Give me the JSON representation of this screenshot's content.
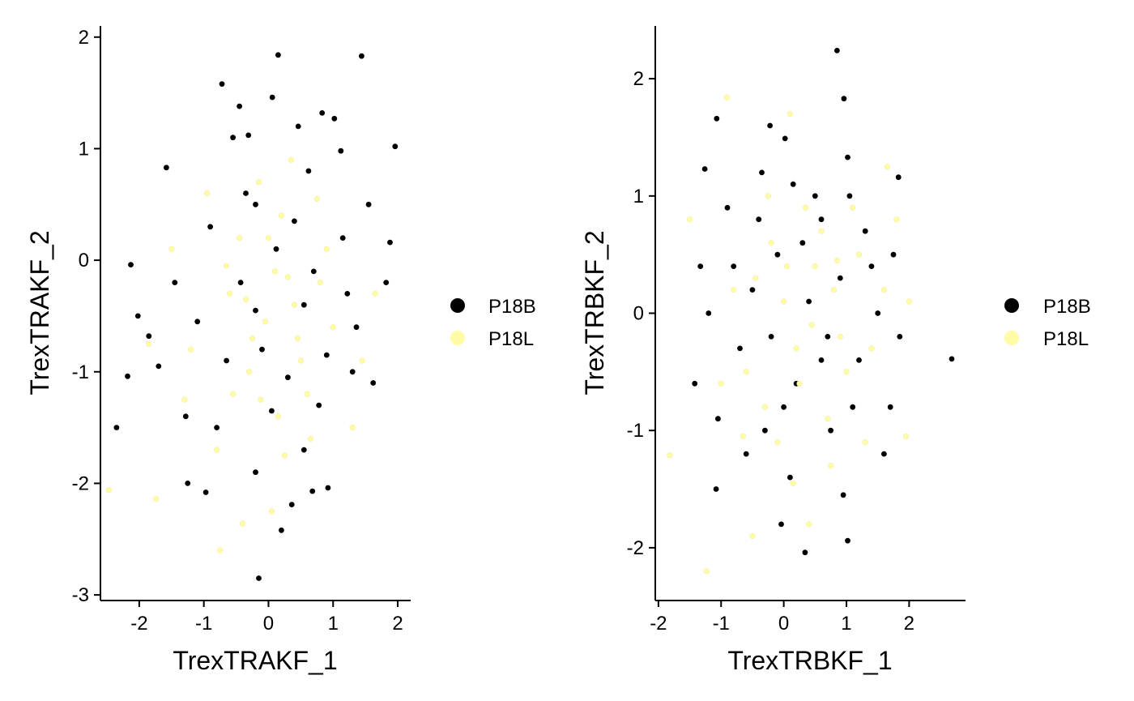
{
  "colors": {
    "P18B": "#000000",
    "P18L": "#FFFCA5",
    "axis": "#000000",
    "background": "#FFFFFF"
  },
  "legend": {
    "entries": [
      "P18B",
      "P18L"
    ],
    "placement": "right of each panel"
  },
  "chart_data": [
    {
      "type": "scatter",
      "title": "",
      "xlabel": "TrexTRAKF_1",
      "ylabel": "TrexTRAKF_2",
      "xlim": [
        -2.6,
        2.2
      ],
      "ylim": [
        -3.05,
        2.1
      ],
      "xticks": [
        -2,
        -1,
        0,
        1,
        2
      ],
      "xtick_labels": [
        "-2",
        "-1",
        "0",
        "1",
        "2"
      ],
      "yticks": [
        -3,
        -2,
        -1,
        0,
        1,
        2
      ],
      "ytick_labels": [
        "-3",
        "-2",
        "-1",
        "0",
        "1",
        "2"
      ],
      "grid": false,
      "legend_placement": "right",
      "series": [
        {
          "name": "P18B",
          "points": [
            [
              0.15,
              1.84
            ],
            [
              1.44,
              1.83
            ],
            [
              -0.72,
              1.58
            ],
            [
              0.06,
              1.46
            ],
            [
              -0.45,
              1.38
            ],
            [
              0.83,
              1.32
            ],
            [
              1.02,
              1.27
            ],
            [
              0.46,
              1.2
            ],
            [
              1.96,
              1.02
            ],
            [
              1.12,
              0.98
            ],
            [
              -0.55,
              1.1
            ],
            [
              -0.31,
              1.12
            ],
            [
              -1.58,
              0.83
            ],
            [
              0.62,
              0.8
            ],
            [
              1.55,
              0.5
            ],
            [
              -0.2,
              0.5
            ],
            [
              -2.13,
              -0.04
            ],
            [
              -2.02,
              -0.5
            ],
            [
              -1.85,
              -0.68
            ],
            [
              -2.18,
              -1.04
            ],
            [
              -2.35,
              -1.5
            ],
            [
              -1.25,
              -2.0
            ],
            [
              -0.97,
              -2.08
            ],
            [
              0.36,
              -2.19
            ],
            [
              0.2,
              -2.42
            ],
            [
              0.68,
              -2.07
            ],
            [
              0.92,
              -2.04
            ],
            [
              -0.15,
              -2.85
            ],
            [
              -0.2,
              -1.9
            ],
            [
              0.55,
              -1.7
            ],
            [
              1.36,
              -0.6
            ],
            [
              1.82,
              -0.2
            ],
            [
              1.62,
              -1.1
            ],
            [
              0.78,
              -1.3
            ],
            [
              -0.8,
              -1.5
            ],
            [
              -1.28,
              -1.4
            ],
            [
              -0.43,
              -0.2
            ],
            [
              0.12,
              0.1
            ],
            [
              0.55,
              -0.4
            ],
            [
              -0.1,
              -0.8
            ],
            [
              0.3,
              -1.05
            ],
            [
              -0.65,
              -0.9
            ],
            [
              0.9,
              -0.85
            ],
            [
              -1.1,
              -0.55
            ],
            [
              1.15,
              0.2
            ],
            [
              -0.35,
              0.6
            ],
            [
              0.4,
              0.35
            ],
            [
              -0.9,
              0.3
            ],
            [
              0.7,
              -0.1
            ],
            [
              -0.2,
              -0.45
            ],
            [
              1.88,
              0.16
            ],
            [
              1.22,
              -0.3
            ],
            [
              -1.45,
              -0.2
            ],
            [
              -1.7,
              -0.95
            ],
            [
              0.05,
              -1.35
            ],
            [
              1.3,
              -1.0
            ]
          ]
        },
        {
          "name": "P18L",
          "points": [
            [
              -2.47,
              -2.06
            ],
            [
              -0.75,
              -2.6
            ],
            [
              -0.4,
              -2.36
            ],
            [
              -1.74,
              -2.14
            ],
            [
              -0.12,
              -1.25
            ],
            [
              0.45,
              -0.7
            ],
            [
              -0.6,
              -0.3
            ],
            [
              0.2,
              0.4
            ],
            [
              0.8,
              -0.2
            ],
            [
              -0.3,
              -1.0
            ],
            [
              1.0,
              -0.6
            ],
            [
              -1.2,
              -0.8
            ],
            [
              0.1,
              -0.1
            ],
            [
              -0.45,
              0.2
            ],
            [
              0.6,
              -1.2
            ],
            [
              -0.8,
              -1.7
            ],
            [
              0.35,
              0.9
            ],
            [
              -0.05,
              -0.55
            ],
            [
              1.3,
              -1.5
            ],
            [
              -1.5,
              0.1
            ],
            [
              0.25,
              -1.75
            ],
            [
              0.75,
              0.55
            ],
            [
              -0.95,
              0.6
            ],
            [
              0.0,
              0.2
            ],
            [
              0.5,
              -0.9
            ],
            [
              -0.25,
              -0.7
            ],
            [
              1.45,
              -0.9
            ],
            [
              -1.85,
              -0.75
            ],
            [
              0.15,
              -1.4
            ],
            [
              -0.55,
              -1.2
            ],
            [
              0.9,
              0.1
            ],
            [
              -0.15,
              0.7
            ],
            [
              0.4,
              -0.4
            ],
            [
              1.65,
              -0.3
            ],
            [
              -1.3,
              -1.25
            ],
            [
              0.65,
              -1.6
            ],
            [
              0.05,
              -2.25
            ],
            [
              -0.65,
              -0.05
            ],
            [
              0.3,
              -0.15
            ],
            [
              -0.35,
              -0.35
            ]
          ]
        }
      ]
    },
    {
      "type": "scatter",
      "title": "",
      "xlabel": "TrexTRBKF_1",
      "ylabel": "TrexTRBKF_2",
      "xlim": [
        -2.05,
        2.9
      ],
      "ylim": [
        -2.45,
        2.45
      ],
      "xticks": [
        -2,
        -1,
        0,
        1,
        2
      ],
      "xtick_labels": [
        "-2",
        "-1",
        "0",
        "1",
        "2"
      ],
      "yticks": [
        -2,
        -1,
        0,
        1,
        2
      ],
      "ytick_labels": [
        "-2",
        "-1",
        "0",
        "1",
        "2"
      ],
      "grid": false,
      "legend_placement": "right",
      "series": [
        {
          "name": "P18B",
          "points": [
            [
              0.85,
              2.24
            ],
            [
              0.96,
              1.83
            ],
            [
              -1.07,
              1.66
            ],
            [
              -1.26,
              1.23
            ],
            [
              -0.22,
              1.6
            ],
            [
              0.02,
              1.49
            ],
            [
              1.02,
              1.33
            ],
            [
              1.83,
              1.16
            ],
            [
              2.68,
              -0.39
            ],
            [
              0.34,
              -2.04
            ],
            [
              1.02,
              -1.94
            ],
            [
              -0.04,
              -1.8
            ],
            [
              -1.08,
              -1.5
            ],
            [
              -1.33,
              0.4
            ],
            [
              -1.42,
              -0.6
            ],
            [
              1.6,
              -1.2
            ],
            [
              0.6,
              0.8
            ],
            [
              -0.5,
              0.2
            ],
            [
              0.2,
              -0.6
            ],
            [
              0.9,
              0.3
            ],
            [
              -0.3,
              -1.0
            ],
            [
              1.3,
              0.7
            ],
            [
              -0.7,
              -0.3
            ],
            [
              0.4,
              0.1
            ],
            [
              1.1,
              -0.8
            ],
            [
              -0.1,
              0.5
            ],
            [
              0.7,
              -0.2
            ],
            [
              -0.9,
              0.9
            ],
            [
              1.5,
              0.0
            ],
            [
              0.1,
              -1.4
            ],
            [
              -0.6,
              -1.2
            ],
            [
              1.2,
              -0.4
            ],
            [
              0.5,
              1.0
            ],
            [
              -0.2,
              -0.2
            ],
            [
              0.95,
              -1.55
            ],
            [
              1.85,
              -0.2
            ],
            [
              -1.2,
              0.0
            ],
            [
              0.3,
              0.6
            ],
            [
              1.7,
              -0.8
            ],
            [
              -0.8,
              0.4
            ],
            [
              0.75,
              -1.0
            ],
            [
              -0.4,
              0.8
            ],
            [
              1.4,
              0.4
            ],
            [
              0.0,
              -0.8
            ],
            [
              -1.05,
              -0.9
            ],
            [
              0.6,
              -0.4
            ],
            [
              1.75,
              0.5
            ],
            [
              -0.35,
              1.2
            ],
            [
              0.15,
              1.1
            ],
            [
              1.05,
              1.0
            ]
          ]
        },
        {
          "name": "P18L",
          "points": [
            [
              -1.23,
              -2.2
            ],
            [
              -1.82,
              -1.21
            ],
            [
              -0.91,
              1.84
            ],
            [
              0.1,
              1.7
            ],
            [
              1.65,
              1.25
            ],
            [
              2.0,
              0.1
            ],
            [
              1.95,
              -1.05
            ],
            [
              -1.5,
              0.8
            ],
            [
              -0.5,
              -1.9
            ],
            [
              0.4,
              -1.8
            ],
            [
              0.8,
              0.2
            ],
            [
              0.2,
              -0.3
            ],
            [
              -0.2,
              0.6
            ],
            [
              1.0,
              -0.5
            ],
            [
              0.5,
              0.4
            ],
            [
              -0.6,
              -0.5
            ],
            [
              0.7,
              -0.9
            ],
            [
              0.0,
              0.1
            ],
            [
              1.2,
              0.5
            ],
            [
              -0.3,
              -0.8
            ],
            [
              0.35,
              0.9
            ],
            [
              0.9,
              -0.2
            ],
            [
              -0.1,
              -1.1
            ],
            [
              0.6,
              0.7
            ],
            [
              1.4,
              -0.3
            ],
            [
              -0.8,
              0.2
            ],
            [
              0.25,
              -0.6
            ],
            [
              1.1,
              0.9
            ],
            [
              -0.45,
              0.3
            ],
            [
              0.75,
              -1.3
            ],
            [
              0.05,
              0.4
            ],
            [
              1.6,
              0.2
            ],
            [
              -1.0,
              -0.6
            ],
            [
              0.45,
              -0.1
            ],
            [
              1.3,
              -1.1
            ],
            [
              -0.25,
              1.0
            ],
            [
              0.85,
              0.45
            ],
            [
              0.15,
              -1.45
            ],
            [
              -0.65,
              -1.05
            ],
            [
              1.8,
              0.8
            ]
          ]
        }
      ]
    }
  ]
}
